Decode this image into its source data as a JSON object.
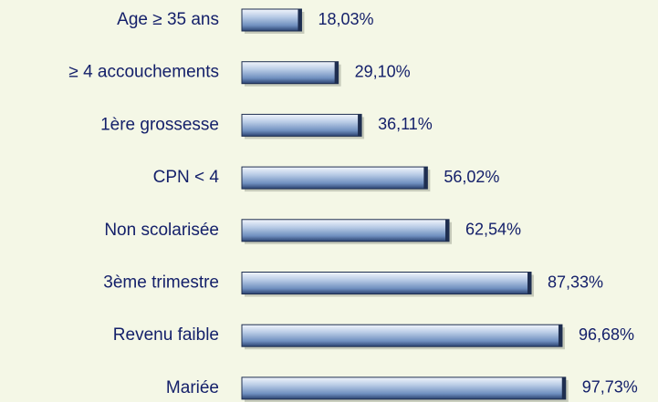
{
  "chart_data": {
    "type": "bar",
    "orientation": "horizontal",
    "categories": [
      "Age ≥ 35 ans",
      "≥ 4 accouchements",
      "1ère grossesse",
      "CPN < 4",
      "Non scolarisée",
      "3ème trimestre",
      "Revenu faible",
      "Mariée"
    ],
    "values": [
      18.03,
      29.1,
      36.11,
      56.02,
      62.54,
      87.33,
      96.68,
      97.73
    ],
    "value_labels": [
      "18,03%",
      "29,10%",
      "36,11%",
      "56,02%",
      "62,54%",
      "87,33%",
      "96,68%",
      "97,73%"
    ],
    "color": "#6f8fbf",
    "xlim": [
      0,
      100
    ]
  }
}
